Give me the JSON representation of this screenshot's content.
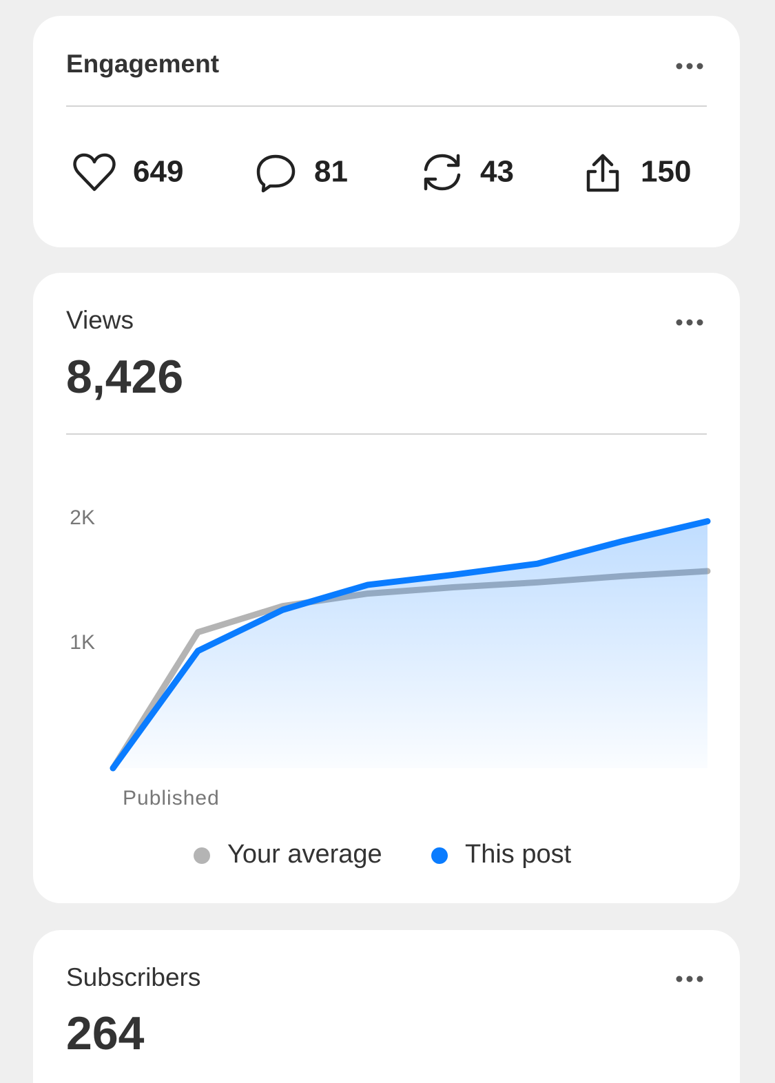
{
  "engagement": {
    "title": "Engagement",
    "stats": [
      649,
      81,
      43,
      150
    ]
  },
  "views": {
    "title": "Views",
    "total": "8,426"
  },
  "chart_data": {
    "type": "line",
    "categories": [
      "Published",
      null,
      null,
      null,
      null,
      null,
      null,
      null
    ],
    "series": [
      {
        "name": "Your average",
        "color": "#b4b4b4",
        "values": [
          0,
          1090,
          1300,
          1400,
          1450,
          1490,
          1540,
          1580
        ]
      },
      {
        "name": "This post",
        "color": "#0a7cff",
        "values": [
          0,
          940,
          1270,
          1470,
          1550,
          1640,
          1820,
          1980
        ]
      }
    ],
    "ylim": [
      0,
      2000
    ],
    "yticks": [
      {
        "value": 1000,
        "label": "1K"
      },
      {
        "value": 2000,
        "label": "2K"
      }
    ],
    "grid": false
  },
  "subscribers": {
    "title": "Subscribers",
    "total": 264
  }
}
